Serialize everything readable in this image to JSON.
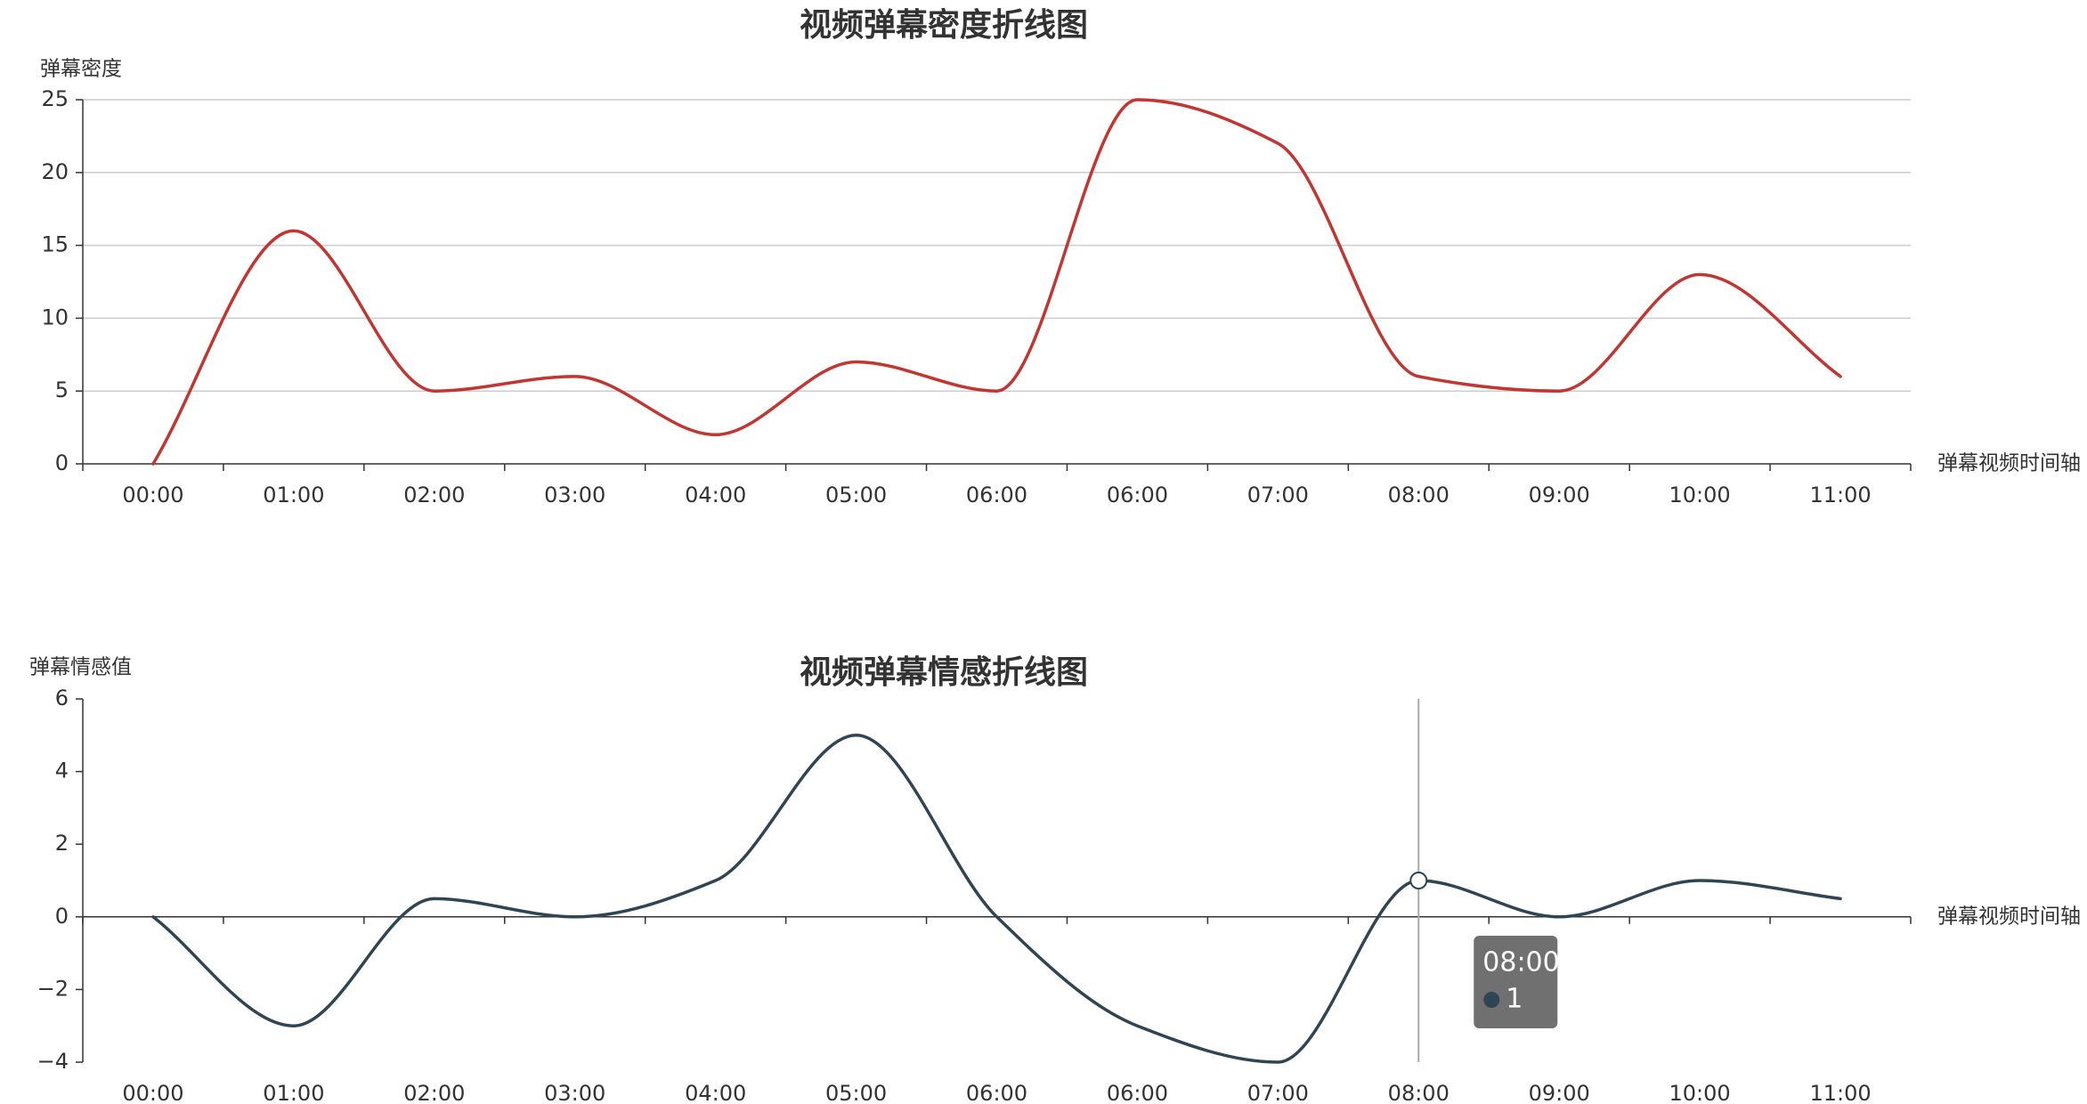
{
  "chart_data": [
    {
      "type": "line",
      "smooth": true,
      "title": "视频弹幕密度折线图",
      "ylabel": "弹幕密度",
      "xlabel": "弹幕视频时间轴",
      "categories": [
        "00:00",
        "01:00",
        "02:00",
        "03:00",
        "04:00",
        "05:00",
        "06:00",
        "06:00",
        "07:00",
        "08:00",
        "09:00",
        "10:00",
        "11:00"
      ],
      "ylim": [
        0,
        25
      ],
      "yticks": [
        0,
        5,
        10,
        15,
        20,
        25
      ],
      "series": [
        {
          "values": [
            0,
            16,
            5,
            6,
            2,
            7,
            5,
            25,
            22,
            6,
            5,
            13,
            6
          ],
          "color": "#c23531"
        }
      ],
      "grid": true
    },
    {
      "type": "line",
      "smooth": true,
      "title": "视频弹幕情感折线图",
      "ylabel": "弹幕情感值",
      "xlabel": "弹幕视频时间轴",
      "categories": [
        "00:00",
        "01:00",
        "02:00",
        "03:00",
        "04:00",
        "05:00",
        "06:00",
        "06:00",
        "07:00",
        "08:00",
        "09:00",
        "10:00",
        "11:00"
      ],
      "ylim": [
        -4,
        6
      ],
      "yticks": [
        -4,
        -2,
        0,
        2,
        4,
        6
      ],
      "series": [
        {
          "values": [
            0,
            -3,
            0.5,
            0,
            1,
            5,
            0,
            -3,
            -4,
            1,
            0,
            1,
            0.5
          ],
          "color": "#2f4554"
        }
      ],
      "grid": false,
      "tooltip": {
        "category_index": 9,
        "label": "08:00",
        "value": "1"
      }
    }
  ]
}
